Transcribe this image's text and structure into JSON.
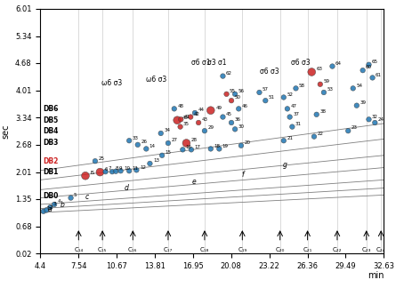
{
  "chart_data": {
    "type": "scatter",
    "x_label": "min",
    "y_label": "sec",
    "xlim": [
      4.4,
      32.63
    ],
    "ylim": [
      0.02,
      6.01
    ],
    "xticks": [
      4.4,
      7.54,
      10.67,
      13.81,
      16.95,
      20.08,
      23.22,
      26.36,
      29.49,
      32.63
    ],
    "yticks": [
      0.02,
      0.68,
      1.35,
      2.01,
      2.68,
      3.34,
      4.01,
      4.68,
      5.34,
      6.01
    ],
    "grid": false,
    "points": {
      "labels": [
        "1",
        "2",
        "3",
        "4",
        "5",
        "IS",
        "6",
        "7",
        "8",
        "9",
        "10",
        "11",
        "12",
        "13",
        "14",
        "15",
        "16",
        "17",
        "18",
        "19",
        "20",
        "21",
        "22",
        "23",
        "24",
        "25",
        "26",
        "27",
        "28",
        "29",
        "30",
        "31",
        "32",
        "33",
        "34",
        "35",
        "36",
        "37",
        "38",
        "39",
        "40",
        "41",
        "42",
        "43",
        "44",
        "45",
        "46",
        "47",
        "48",
        "49",
        "50",
        "51",
        "52",
        "53",
        "54",
        "55",
        "56",
        "57",
        "58",
        "59",
        "60",
        "61",
        "62",
        "63",
        "64",
        "65"
      ],
      "x": [
        4.65,
        4.9,
        5.2,
        5.55,
        6.9,
        8.1,
        9.3,
        9.75,
        10.3,
        10.6,
        11.0,
        11.7,
        12.3,
        13.4,
        13.1,
        14.4,
        16.1,
        16.8,
        18.4,
        19.1,
        20.9,
        24.4,
        26.9,
        29.7,
        31.9,
        8.9,
        12.4,
        14.9,
        16.4,
        17.9,
        20.4,
        25.1,
        31.4,
        11.7,
        14.3,
        15.9,
        20.1,
        24.9,
        27.1,
        30.4,
        15.65,
        15.95,
        16.75,
        17.4,
        17.1,
        19.4,
        20.7,
        24.7,
        15.4,
        18.4,
        20.1,
        22.9,
        24.4,
        27.7,
        30.1,
        19.7,
        20.4,
        22.4,
        25.4,
        27.4,
        30.9,
        31.7,
        19.4,
        26.7,
        28.4,
        31.4
      ],
      "y": [
        1.05,
        1.08,
        1.15,
        1.22,
        1.38,
        1.92,
        2.01,
        2.02,
        2.02,
        2.03,
        2.04,
        2.04,
        2.06,
        2.22,
        2.58,
        2.42,
        2.56,
        2.56,
        2.58,
        2.58,
        2.66,
        2.78,
        2.88,
        3.02,
        3.22,
        2.28,
        2.68,
        2.72,
        2.72,
        3.02,
        3.06,
        3.12,
        3.3,
        2.78,
        2.96,
        3.12,
        3.22,
        3.36,
        3.42,
        3.64,
        3.28,
        3.3,
        3.36,
        3.22,
        3.46,
        3.36,
        3.56,
        3.56,
        3.56,
        3.52,
        3.76,
        3.76,
        3.84,
        3.96,
        4.06,
        3.92,
        3.92,
        3.96,
        4.06,
        4.16,
        4.5,
        4.32,
        4.36,
        4.46,
        4.6,
        4.64
      ],
      "colors": [
        "#1f77b4",
        "#1f77b4",
        "#1f77b4",
        "#1f77b4",
        "#1f77b4",
        "#cc2222",
        "#cc2222",
        "#1f77b4",
        "#1f77b4",
        "#1f77b4",
        "#1f77b4",
        "#1f77b4",
        "#1f77b4",
        "#1f77b4",
        "#1f77b4",
        "#1f77b4",
        "#1f77b4",
        "#1f77b4",
        "#1f77b4",
        "#1f77b4",
        "#1f77b4",
        "#1f77b4",
        "#1f77b4",
        "#1f77b4",
        "#1f77b4",
        "#1f77b4",
        "#1f77b4",
        "#1f77b4",
        "#cc2222",
        "#1f77b4",
        "#1f77b4",
        "#1f77b4",
        "#1f77b4",
        "#1f77b4",
        "#1f77b4",
        "#cc2222",
        "#1f77b4",
        "#1f77b4",
        "#1f77b4",
        "#1f77b4",
        "#cc2222",
        "#cc2222",
        "#cc2222",
        "#cc2222",
        "#1f77b4",
        "#1f77b4",
        "#1f77b4",
        "#1f77b4",
        "#1f77b4",
        "#cc2222",
        "#cc2222",
        "#1f77b4",
        "#1f77b4",
        "#1f77b4",
        "#1f77b4",
        "#cc2222",
        "#1f77b4",
        "#1f77b4",
        "#1f77b4",
        "#cc2222",
        "#1f77b4",
        "#1f77b4",
        "#1f77b4",
        "#cc2222",
        "#1f77b4",
        "#1f77b4"
      ],
      "large": [
        false,
        false,
        false,
        false,
        false,
        true,
        true,
        false,
        false,
        false,
        false,
        false,
        false,
        false,
        false,
        false,
        false,
        false,
        false,
        false,
        false,
        false,
        false,
        false,
        false,
        false,
        false,
        false,
        true,
        false,
        false,
        false,
        false,
        false,
        false,
        false,
        false,
        false,
        false,
        false,
        true,
        false,
        false,
        false,
        false,
        false,
        false,
        false,
        false,
        true,
        false,
        false,
        false,
        false,
        false,
        false,
        false,
        false,
        false,
        false,
        false,
        false,
        false,
        true,
        false,
        false
      ]
    },
    "lines": [
      {
        "x": [
          4.4,
          32.63
        ],
        "y": [
          1.02,
          1.45
        ],
        "color": "#7f7f7f"
      },
      {
        "x": [
          4.4,
          32.63
        ],
        "y": [
          1.12,
          1.62
        ],
        "color": "#7f7f7f"
      },
      {
        "x": [
          4.4,
          32.63
        ],
        "y": [
          1.22,
          1.82
        ],
        "color": "#7f7f7f"
      },
      {
        "x": [
          4.4,
          32.63
        ],
        "y": [
          1.38,
          2.12
        ],
        "color": "#7f7f7f"
      },
      {
        "x": [
          4.4,
          32.63
        ],
        "y": [
          1.58,
          2.42
        ],
        "color": "#7f7f7f"
      },
      {
        "x": [
          4.4,
          32.63
        ],
        "y": [
          1.82,
          2.82
        ],
        "color": "#7f7f7f"
      },
      {
        "x": [
          4.4,
          32.63
        ],
        "y": [
          2.05,
          3.2
        ],
        "color": "#7f7f7f"
      }
    ],
    "db_labels": [
      {
        "text": "DB0",
        "x": 4.6,
        "y": 1.42,
        "color": "black"
      },
      {
        "text": "DB1",
        "x": 4.6,
        "y": 2.02,
        "color": "black"
      },
      {
        "text": "DB2",
        "x": 4.6,
        "y": 2.28,
        "color": "#cc2222"
      },
      {
        "text": "DB3",
        "x": 4.6,
        "y": 2.72,
        "color": "black"
      },
      {
        "text": "DB4",
        "x": 4.6,
        "y": 3.02,
        "color": "black"
      },
      {
        "text": "DB5",
        "x": 4.6,
        "y": 3.28,
        "color": "black"
      },
      {
        "text": "DB6",
        "x": 4.6,
        "y": 3.56,
        "color": "black"
      }
    ],
    "line_labels": [
      {
        "text": "a",
        "x": 5.2,
        "y": 1.01
      },
      {
        "text": "b",
        "x": 6.2,
        "y": 1.1
      },
      {
        "text": "c",
        "x": 8.2,
        "y": 1.3
      },
      {
        "text": "d",
        "x": 11.5,
        "y": 1.52
      },
      {
        "text": "e",
        "x": 17.0,
        "y": 1.68
      },
      {
        "text": "f",
        "x": 21.0,
        "y": 1.84
      },
      {
        "text": "g",
        "x": 24.5,
        "y": 2.08
      }
    ],
    "omega_labels": [
      {
        "text": "ω6 σ3",
        "x": 10.3,
        "y": 4.08
      },
      {
        "text": "ω6 σ3",
        "x": 13.9,
        "y": 4.18
      },
      {
        "text": "σ6 σ1",
        "x": 17.6,
        "y": 4.6
      },
      {
        "text": "σ3 σ1",
        "x": 18.9,
        "y": 4.58
      },
      {
        "text": "σ6 σ3",
        "x": 23.2,
        "y": 4.38
      },
      {
        "text": "σ6 σ3",
        "x": 25.8,
        "y": 4.58
      }
    ],
    "carbon_markers": {
      "x": [
        7.54,
        9.5,
        12.0,
        14.9,
        17.9,
        21.0,
        24.1,
        26.36,
        28.8,
        31.2,
        32.4
      ],
      "labels": [
        "C₁₄",
        "C₁₅",
        "C₁₆",
        "C₁₇",
        "C₁₈",
        "C₁₉",
        "C₂₀",
        "C₂₁",
        "C₂₂",
        "C₂₃",
        "C₂₄"
      ],
      "color": "#7f7f7f"
    }
  }
}
